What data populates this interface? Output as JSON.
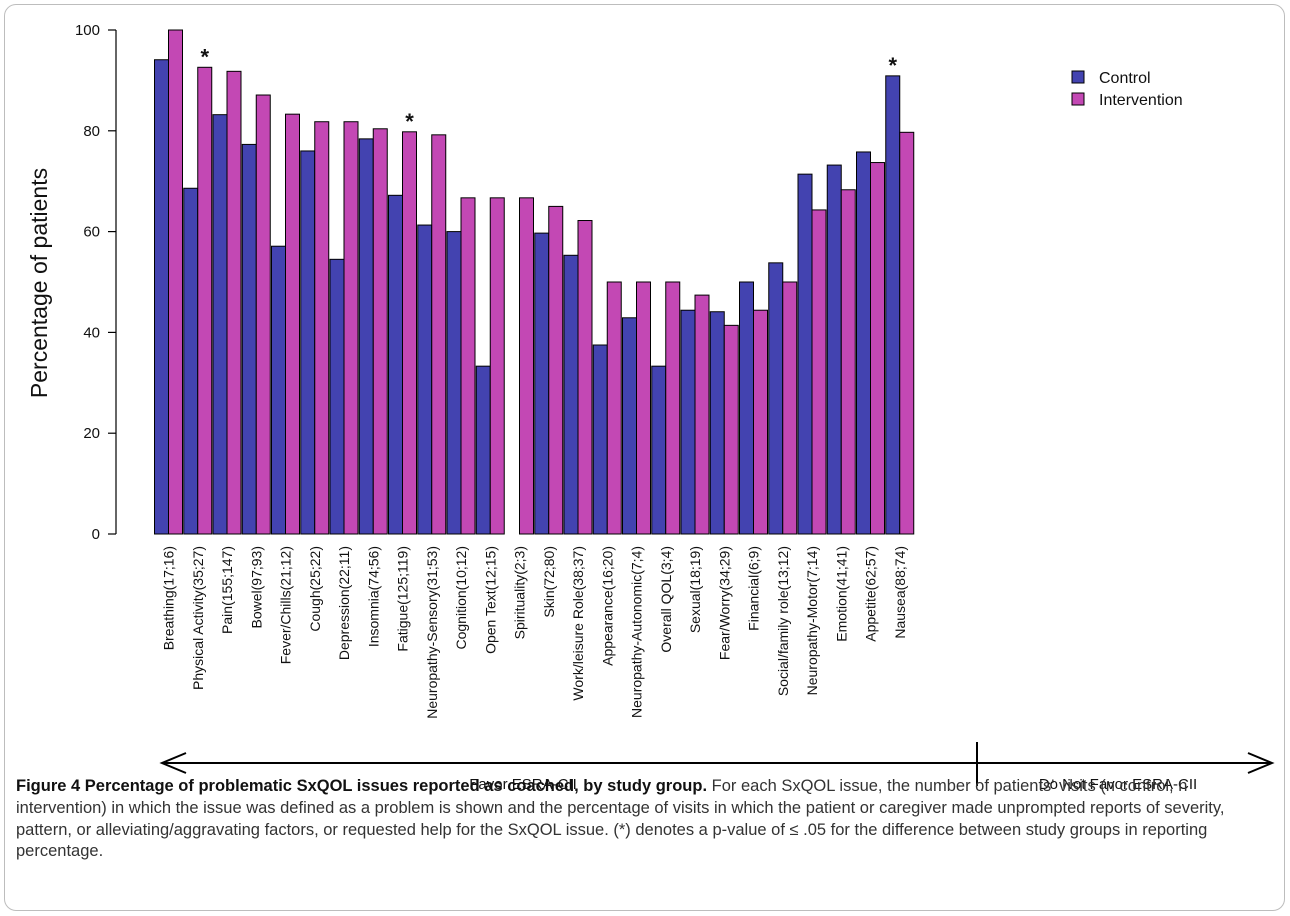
{
  "chart_data": {
    "type": "bar",
    "ylabel": "Percentage of patients",
    "ylim": [
      0,
      100
    ],
    "yticks": [
      "0",
      "20",
      "40",
      "60",
      "80",
      "100"
    ],
    "categories": [
      "Breathing(17;16)",
      "Physical Activity(35;27)",
      "Pain(155;147)",
      "Bowel(97;93)",
      "Fever/Chills(21;12)",
      "Cough(25;22)",
      "Depression(22;11)",
      "Insomnia(74;56)",
      "Fatigue(125;119)",
      "Neuropathy-Sensory(31;53)",
      "Cognition(10;12)",
      "Open Text(12;15)",
      "Spirituality(2;3)",
      "Skin(72;80)",
      "Work/leisure Role(38;37)",
      "Appearance(16;20)",
      "Neuropathy-Autonomic(7;4)",
      "Overall QOL(3;4)",
      "Sexual(18;19)",
      "Fear/Worry(34;29)",
      "Financial(6;9)",
      "Social/family role(13;12)",
      "Neuropathy-Motor(7;14)",
      "Emotion(41;41)",
      "Appetite(62;57)",
      "Nausea(88;74)"
    ],
    "series": [
      {
        "name": "Control",
        "color": "#4343b0",
        "values": [
          94.1,
          68.6,
          83.2,
          77.3,
          57.1,
          76.0,
          54.5,
          78.4,
          67.2,
          61.3,
          60.0,
          33.3,
          0,
          59.7,
          55.3,
          37.5,
          42.9,
          33.3,
          44.4,
          44.1,
          50.0,
          53.8,
          71.4,
          73.2,
          75.8,
          90.9
        ]
      },
      {
        "name": "Intervention",
        "color": "#c348b4",
        "values": [
          100,
          92.6,
          91.8,
          87.1,
          83.3,
          81.8,
          81.8,
          80.4,
          79.8,
          79.2,
          66.7,
          66.7,
          66.7,
          65.0,
          62.2,
          50.0,
          50.0,
          50.0,
          47.4,
          41.4,
          44.4,
          50.0,
          64.3,
          68.3,
          73.7,
          79.7
        ]
      }
    ],
    "significance": [
      {
        "label": "*",
        "category_index": 1,
        "above": "Intervention"
      },
      {
        "label": "*",
        "category_index": 8,
        "above": "Intervention"
      },
      {
        "label": "*",
        "category_index": 25,
        "above": "Control"
      }
    ],
    "legend_position": "top-right",
    "arrow_labels": {
      "left": "Favor ESRA-CII",
      "right": "Do Not Favor ESRA-CII"
    }
  },
  "caption": {
    "label": "Figure 4 Percentage of problematic SxQOL issues reported as coached, by study group.",
    "text": " For each SxQOL issue, the number of patients' visits (n control, n intervention) in which the issue was defined as a problem is shown and the percentage of visits in which the patient or caregiver made unprompted reports of severity, pattern, or alleviating/aggravating factors, or requested help for the SxQOL issue. (*) denotes a p-value of ≤ .05 for the difference between study groups in reporting percentage."
  }
}
